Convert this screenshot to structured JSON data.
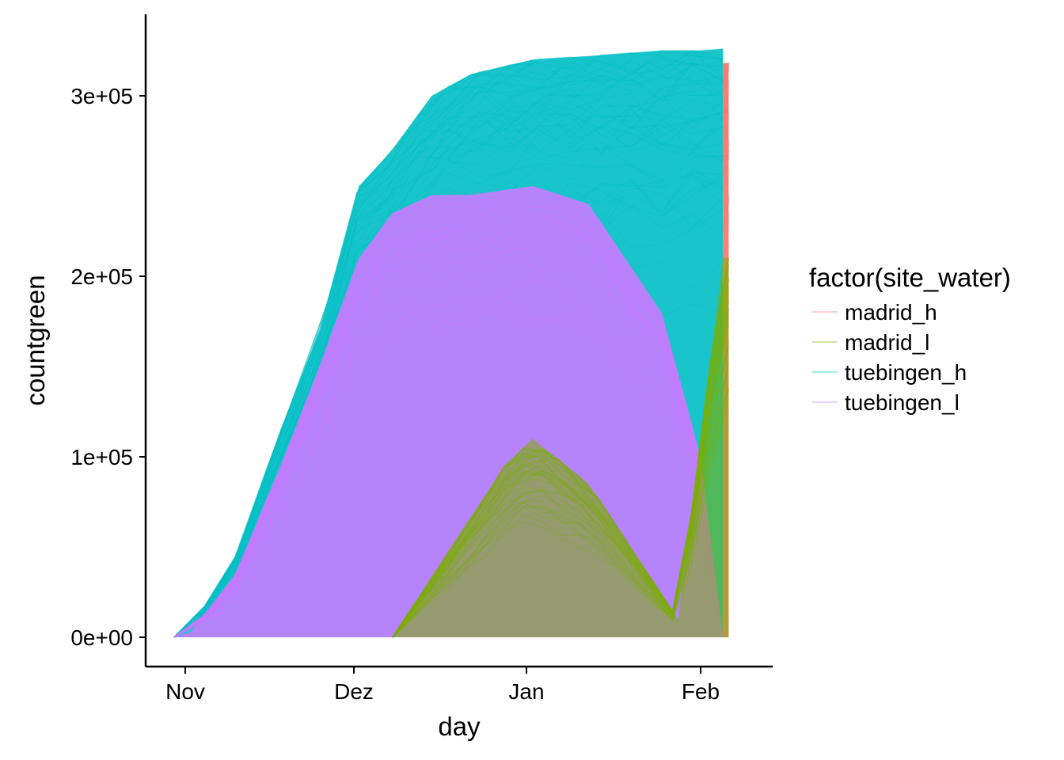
{
  "chart_data": {
    "type": "line",
    "xlabel": "day",
    "ylabel": "countgreen",
    "x_axis": {
      "ticks": [
        "Nov",
        "Dez",
        "Jan",
        "Feb"
      ]
    },
    "y_axis": {
      "ticks": [
        "0e+00",
        "1e+05",
        "2e+05",
        "3e+05"
      ],
      "ylim": [
        -16000,
        345000
      ]
    },
    "legend": {
      "title": "factor(site_water)",
      "position": "right"
    },
    "grid": false,
    "series": [
      {
        "name": "madrid_h",
        "color": "#F8766D",
        "x": [
          "Feb 5",
          "Feb 6"
        ],
        "bands": [
          {
            "range": "upper",
            "y": [
              318000,
              318000
            ]
          },
          {
            "range": "lower",
            "y": [
              0,
              0
            ]
          }
        ]
      },
      {
        "name": "madrid_l",
        "color": "#7CAE00",
        "x": [
          "Dec 8",
          "Dec 28",
          "Jan 2",
          "Jan 12",
          "Jan 28",
          "Feb 5",
          "Feb 6"
        ],
        "bands": [
          {
            "range": "upper",
            "y": [
              0,
              95000,
              110000,
              85000,
              10000,
              210000,
              210000
            ]
          },
          {
            "range": "lower",
            "y": [
              0,
              0,
              0,
              0,
              0,
              0,
              0
            ]
          }
        ]
      },
      {
        "name": "tuebingen_h",
        "color": "#00BFC4",
        "x": [
          "Oct 30",
          "Nov 2",
          "Nov 10",
          "Nov 18",
          "Nov 25",
          "Dec 2",
          "Dec 8",
          "Dec 15",
          "Dec 22",
          "Jan 2",
          "Jan 12",
          "Jan 25",
          "Feb 1",
          "Feb 5"
        ],
        "bands": [
          {
            "range": "upper",
            "y": [
              0,
              5000,
              45000,
              115000,
              170000,
              250000,
              270000,
              300000,
              312000,
              320000,
              322000,
              325000,
              325000,
              326000
            ]
          },
          {
            "range": "lower",
            "y": [
              0,
              0,
              0,
              0,
              0,
              0,
              0,
              0,
              0,
              0,
              0,
              0,
              0,
              0
            ]
          }
        ]
      },
      {
        "name": "tuebingen_l",
        "color": "#C77CFF",
        "x": [
          "Oct 30",
          "Nov 2",
          "Nov 10",
          "Nov 18",
          "Nov 25",
          "Dec 2",
          "Dec 8",
          "Dec 15",
          "Dec 22",
          "Jan 2",
          "Jan 12",
          "Jan 25",
          "Feb 1",
          "Feb 5"
        ],
        "bands": [
          {
            "range": "upper",
            "y": [
              0,
              3000,
              35000,
              95000,
              150000,
              210000,
              235000,
              245000,
              245000,
              250000,
              240000,
              180000,
              100000,
              0
            ]
          },
          {
            "range": "lower",
            "y": [
              0,
              0,
              0,
              0,
              0,
              0,
              0,
              0,
              0,
              0,
              0,
              0,
              0,
              0
            ]
          }
        ]
      }
    ]
  }
}
